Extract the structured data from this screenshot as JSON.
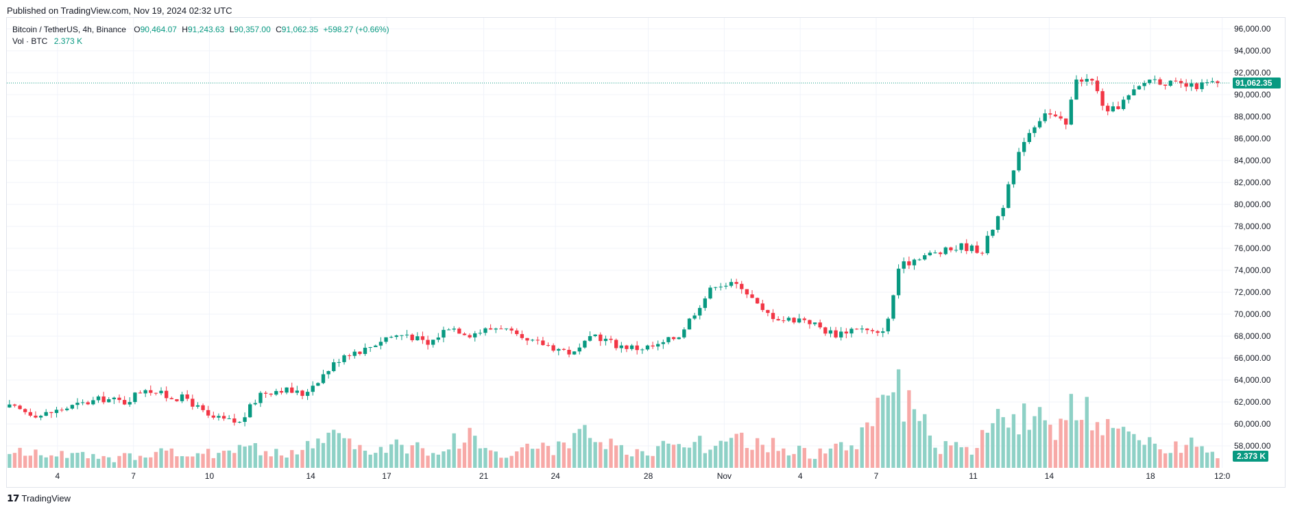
{
  "published": "Published on TradingView.com, Nov 19, 2024 02:32 UTC",
  "brand": {
    "name": "TradingView",
    "logo_icon": "tradingview-logo-icon"
  },
  "colors": {
    "up": "#089981",
    "down": "#f23645",
    "vol_up": "#8ed1c6",
    "vol_down": "#f7a9a7",
    "grid": "#f0f3fa",
    "axis_text": "#131722"
  },
  "legend": {
    "symbol": "Bitcoin / TetherUS, 4h, Binance",
    "o_label": "O",
    "o": "90,464.07",
    "h_label": "H",
    "h": "91,243.63",
    "l_label": "L",
    "l": "90,357.00",
    "c_label": "C",
    "c": "91,062.35",
    "change": "+598.27 (+0.66%)",
    "vol_label": "Vol · BTC",
    "vol_value": "2.373 K"
  },
  "price_label": "91,062.35",
  "volume_label": "2.373 K",
  "chart_data": {
    "type": "candlestick",
    "timeframe": "4h",
    "ylim": [
      56000,
      97000
    ],
    "y_ticks": [
      "96,000.00",
      "94,000.00",
      "92,000.00",
      "90,000.00",
      "88,000.00",
      "86,000.00",
      "84,000.00",
      "82,000.00",
      "80,000.00",
      "78,000.00",
      "76,000.00",
      "74,000.00",
      "72,000.00",
      "70,000.00",
      "68,000.00",
      "66,000.00",
      "64,000.00",
      "62,000.00",
      "60,000.00",
      "58,000.00"
    ],
    "x_ticks": [
      "4",
      "7",
      "10",
      "14",
      "17",
      "21",
      "24",
      "28",
      "Nov",
      "4",
      "7",
      "11",
      "14",
      "18",
      "12:0"
    ],
    "last_price": 91062.35,
    "close_path": [
      [
        0,
        61500
      ],
      [
        6,
        60800
      ],
      [
        12,
        61600
      ],
      [
        18,
        62300
      ],
      [
        22,
        62000
      ],
      [
        26,
        63300
      ],
      [
        30,
        62500
      ],
      [
        34,
        62300
      ],
      [
        38,
        60600
      ],
      [
        44,
        60100
      ],
      [
        48,
        62800
      ],
      [
        52,
        63200
      ],
      [
        56,
        62700
      ],
      [
        60,
        64500
      ],
      [
        64,
        66400
      ],
      [
        68,
        66800
      ],
      [
        72,
        67900
      ],
      [
        76,
        68200
      ],
      [
        80,
        67200
      ],
      [
        84,
        68900
      ],
      [
        88,
        68200
      ],
      [
        94,
        68900
      ],
      [
        98,
        67500
      ],
      [
        102,
        67300
      ],
      [
        108,
        66400
      ],
      [
        112,
        68100
      ],
      [
        116,
        67200
      ],
      [
        120,
        66900
      ],
      [
        124,
        67100
      ],
      [
        128,
        68100
      ],
      [
        132,
        70900
      ],
      [
        135,
        72800
      ],
      [
        140,
        72600
      ],
      [
        144,
        70200
      ],
      [
        148,
        69500
      ],
      [
        152,
        69600
      ],
      [
        156,
        68500
      ],
      [
        158,
        68200
      ],
      [
        162,
        68800
      ],
      [
        166,
        68100
      ],
      [
        168,
        69400
      ],
      [
        170,
        74200
      ],
      [
        174,
        75300
      ],
      [
        178,
        75600
      ],
      [
        182,
        76200
      ],
      [
        186,
        75800
      ],
      [
        190,
        80000
      ],
      [
        194,
        86000
      ],
      [
        198,
        88500
      ],
      [
        202,
        87200
      ],
      [
        204,
        91600
      ],
      [
        207,
        91200
      ],
      [
        210,
        88200
      ],
      [
        214,
        89800
      ],
      [
        218,
        91500
      ],
      [
        222,
        91000
      ],
      [
        226,
        90700
      ],
      [
        230,
        91062
      ]
    ],
    "volume_path": [
      [
        0,
        1100
      ],
      [
        10,
        1000
      ],
      [
        20,
        600
      ],
      [
        28,
        1300
      ],
      [
        36,
        800
      ],
      [
        44,
        1700
      ],
      [
        52,
        900
      ],
      [
        58,
        1600
      ],
      [
        62,
        2700
      ],
      [
        68,
        1000
      ],
      [
        74,
        1900
      ],
      [
        80,
        1100
      ],
      [
        88,
        2400
      ],
      [
        94,
        800
      ],
      [
        100,
        1600
      ],
      [
        106,
        1400
      ],
      [
        110,
        2300
      ],
      [
        116,
        1400
      ],
      [
        122,
        800
      ],
      [
        128,
        2500
      ],
      [
        134,
        1400
      ],
      [
        140,
        1900
      ],
      [
        146,
        1600
      ],
      [
        154,
        1000
      ],
      [
        162,
        1700
      ],
      [
        168,
        6900
      ],
      [
        172,
        4100
      ],
      [
        178,
        1500
      ],
      [
        184,
        1300
      ],
      [
        188,
        3000
      ],
      [
        192,
        4100
      ],
      [
        196,
        3600
      ],
      [
        200,
        2100
      ],
      [
        204,
        4700
      ],
      [
        208,
        2700
      ],
      [
        214,
        2300
      ],
      [
        220,
        1300
      ],
      [
        224,
        1700
      ],
      [
        228,
        2100
      ],
      [
        232,
        600
      ]
    ]
  }
}
